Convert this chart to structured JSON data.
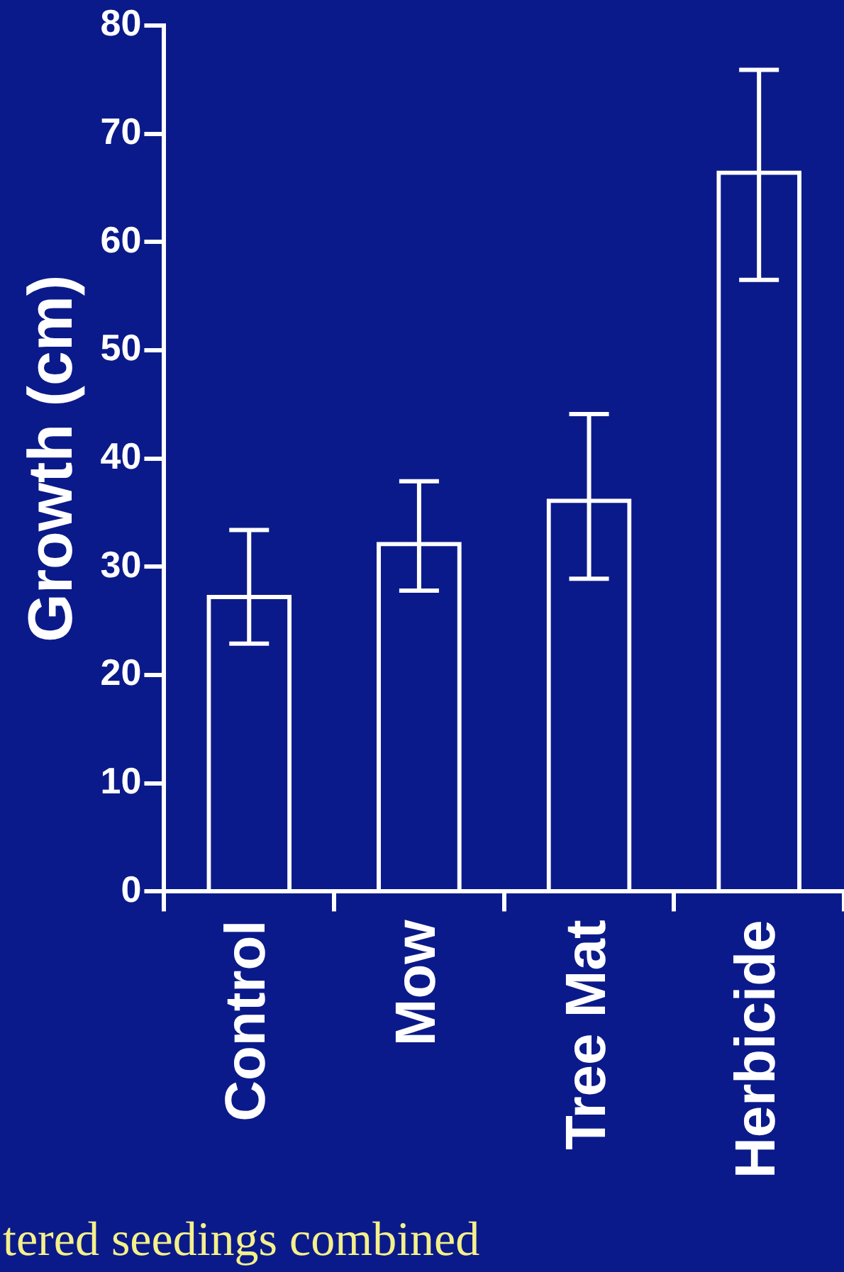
{
  "chart_data": {
    "type": "bar",
    "ylabel": "Growth (cm)",
    "categories": [
      "Control",
      "Mow",
      "Tree Mat",
      "Herbicide"
    ],
    "values": [
      27.4,
      32.3,
      36.3,
      66.6
    ],
    "errors": [
      [
        22.9,
        33.4
      ],
      [
        27.8,
        37.9
      ],
      [
        28.9,
        44.1
      ],
      [
        56.5,
        75.9
      ]
    ],
    "color": "#ffffff",
    "ylim": [
      0,
      80
    ],
    "yticks": [
      0,
      10,
      20,
      30,
      40,
      50,
      60,
      70,
      80
    ],
    "grid": false,
    "legend": false,
    "annotations": [
      "tered seedings combined"
    ]
  }
}
